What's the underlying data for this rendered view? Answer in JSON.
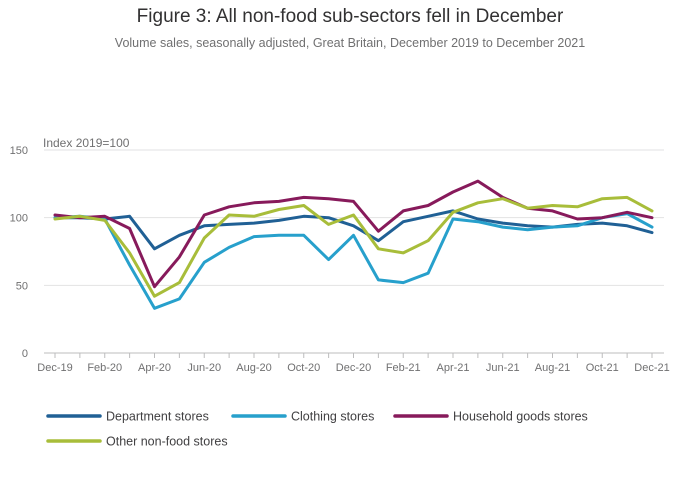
{
  "chart_data": {
    "type": "line",
    "title": "Figure 3: All non-food sub-sectors fell in December",
    "subtitle": "Volume sales, seasonally adjusted, Great Britain, December 2019 to December 2021",
    "ylabel": "Index 2019=100",
    "xlabel": "",
    "ylim": [
      0,
      150
    ],
    "yticks": [
      0,
      50,
      100,
      150
    ],
    "x": [
      "Dec-19",
      "Jan-20",
      "Feb-20",
      "Mar-20",
      "Apr-20",
      "May-20",
      "Jun-20",
      "Jul-20",
      "Aug-20",
      "Sep-20",
      "Oct-20",
      "Nov-20",
      "Dec-20",
      "Jan-21",
      "Feb-21",
      "Mar-21",
      "Apr-21",
      "May-21",
      "Jun-21",
      "Jul-21",
      "Aug-21",
      "Sep-21",
      "Oct-21",
      "Nov-21",
      "Dec-21"
    ],
    "xtick_labels": [
      "Dec-19",
      "Feb-20",
      "Apr-20",
      "Jun-20",
      "Aug-20",
      "Oct-20",
      "Dec-20",
      "Feb-21",
      "Apr-21",
      "Jun-21",
      "Aug-21",
      "Oct-21",
      "Dec-21"
    ],
    "series": [
      {
        "name": "Department stores",
        "color": "#206095",
        "values": [
          100,
          100,
          99,
          101,
          77,
          87,
          94,
          95,
          96,
          98,
          101,
          100,
          94,
          83,
          97,
          101,
          105,
          99,
          96,
          94,
          93,
          95,
          96,
          94,
          89
        ]
      },
      {
        "name": "Clothing stores",
        "color": "#27a0cc",
        "values": [
          100,
          101,
          99,
          65,
          33,
          40,
          67,
          78,
          86,
          87,
          87,
          69,
          87,
          54,
          52,
          59,
          99,
          97,
          93,
          91,
          93,
          94,
          100,
          103,
          93
        ]
      },
      {
        "name": "Household goods stores",
        "color": "#871a5b",
        "values": [
          102,
          100,
          101,
          92,
          49,
          71,
          102,
          108,
          111,
          112,
          115,
          114,
          112,
          90,
          105,
          109,
          119,
          127,
          115,
          107,
          105,
          99,
          100,
          104,
          100
        ]
      },
      {
        "name": "Other non-food stores",
        "color": "#a8bd3a",
        "values": [
          99,
          101,
          98,
          74,
          42,
          52,
          85,
          102,
          101,
          106,
          109,
          95,
          102,
          77,
          74,
          83,
          104,
          111,
          114,
          107,
          109,
          108,
          114,
          115,
          105
        ]
      }
    ],
    "legend_position": "bottom",
    "grid": true
  }
}
